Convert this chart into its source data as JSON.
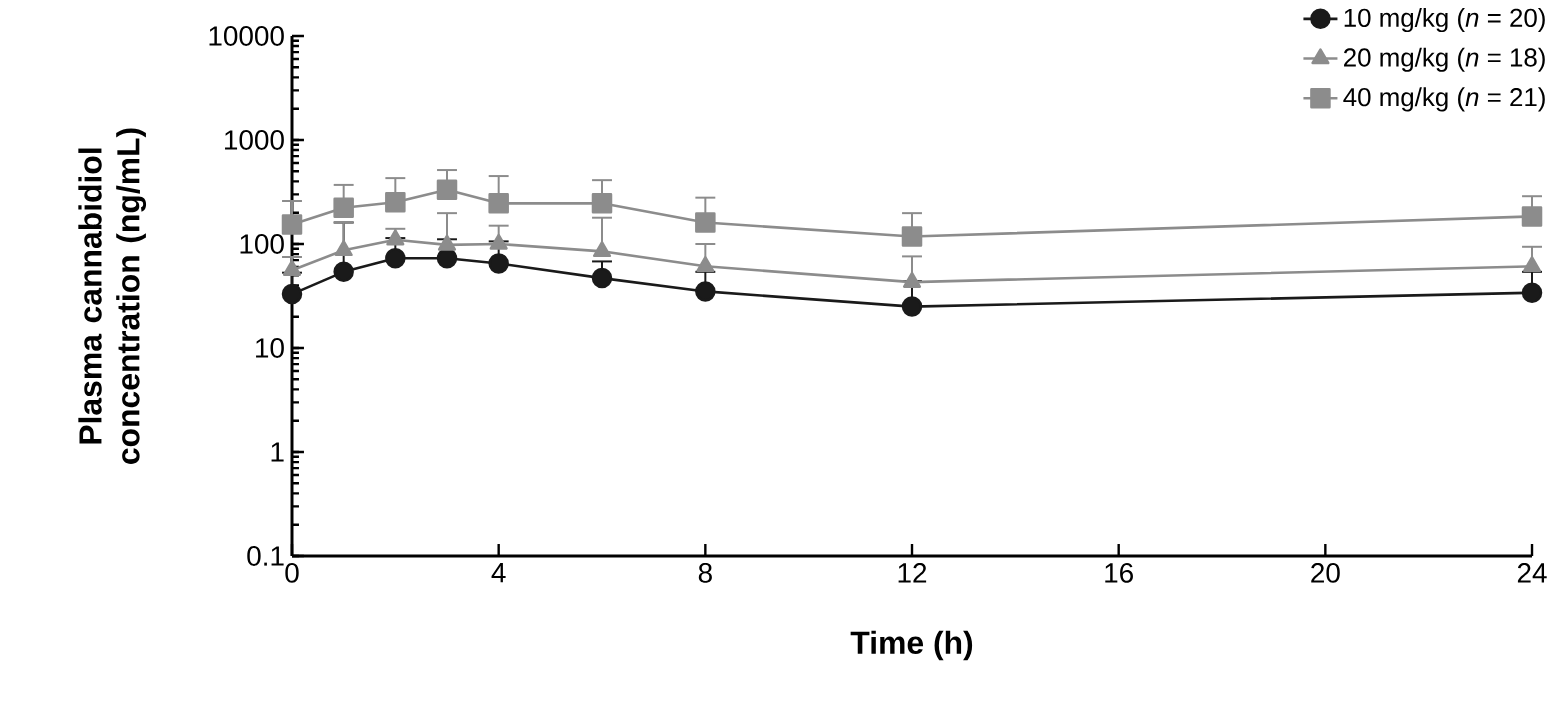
{
  "chart_data": {
    "type": "line",
    "xlabel": "Time (h)",
    "ylabel": "Plasma cannabidiol concentration (ng/mL)",
    "x": [
      0,
      1,
      2,
      3,
      4,
      6,
      8,
      12,
      24
    ],
    "series": [
      {
        "name": "10 mg/kg (*n* = 20)",
        "color": "#1a1a1a",
        "marker": "circle",
        "values": [
          33,
          54,
          73,
          73,
          65,
          47,
          35,
          25,
          34
        ],
        "errors": [
          [
            33,
            53
          ],
          [
            54,
            161
          ],
          [
            73,
            114
          ],
          [
            73,
            111
          ],
          [
            65,
            106
          ],
          [
            47,
            68
          ],
          [
            35,
            54
          ],
          [
            25,
            44
          ],
          [
            34,
            54
          ]
        ]
      },
      {
        "name": "20 mg/kg (*n* = 18)",
        "color": "#8c8c8c",
        "marker": "triangle",
        "values": [
          56,
          87,
          110,
          98,
          100,
          85,
          61,
          43,
          61
        ],
        "errors": [
          [
            56,
            75
          ],
          [
            87,
            161
          ],
          [
            110,
            140
          ],
          [
            98,
            198
          ],
          [
            100,
            150
          ],
          [
            85,
            179
          ],
          [
            61,
            100
          ],
          [
            43,
            76
          ],
          [
            61,
            94
          ]
        ]
      },
      {
        "name": "40 mg/kg (*n* = 21)",
        "color": "#8c8c8c",
        "marker": "square",
        "values": [
          154,
          223,
          252,
          333,
          246,
          246,
          161,
          118,
          184
        ],
        "errors": [
          [
            154,
            259
          ],
          [
            223,
            370
          ],
          [
            252,
            430
          ],
          [
            333,
            514
          ],
          [
            246,
            450
          ],
          [
            246,
            411
          ],
          [
            161,
            279
          ],
          [
            118,
            198
          ],
          [
            184,
            288
          ]
        ]
      }
    ],
    "log": "y",
    "ylim": [
      0.1,
      10000
    ],
    "yticks": [
      0.1,
      1,
      10,
      100,
      1000,
      10000
    ],
    "xlim": [
      0,
      24
    ],
    "xticks": [
      0,
      4,
      8,
      12,
      16,
      20,
      24
    ],
    "grid": false,
    "legend": "top right",
    "line_style": "solid"
  }
}
